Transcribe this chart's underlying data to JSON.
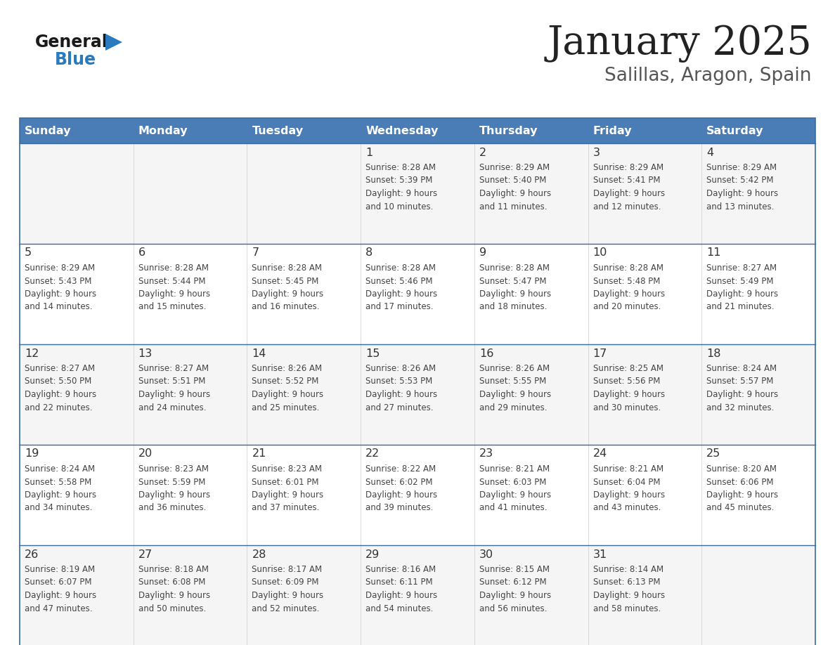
{
  "title": "January 2025",
  "subtitle": "Salillas, Aragon, Spain",
  "days_of_week": [
    "Sunday",
    "Monday",
    "Tuesday",
    "Wednesday",
    "Thursday",
    "Friday",
    "Saturday"
  ],
  "header_bg": "#4a7db5",
  "header_text": "#ffffff",
  "row_bg_light": "#f5f5f5",
  "row_bg_white": "#ffffff",
  "cell_text_color": "#444444",
  "day_num_color": "#333333",
  "border_color": "#3a6a9e",
  "title_color": "#222222",
  "subtitle_color": "#555555",
  "logo_general_color": "#1a1a1a",
  "logo_blue_color": "#2a7abf",
  "weeks": [
    [
      {
        "day": "",
        "info": ""
      },
      {
        "day": "",
        "info": ""
      },
      {
        "day": "",
        "info": ""
      },
      {
        "day": "1",
        "info": "Sunrise: 8:28 AM\nSunset: 5:39 PM\nDaylight: 9 hours\nand 10 minutes."
      },
      {
        "day": "2",
        "info": "Sunrise: 8:29 AM\nSunset: 5:40 PM\nDaylight: 9 hours\nand 11 minutes."
      },
      {
        "day": "3",
        "info": "Sunrise: 8:29 AM\nSunset: 5:41 PM\nDaylight: 9 hours\nand 12 minutes."
      },
      {
        "day": "4",
        "info": "Sunrise: 8:29 AM\nSunset: 5:42 PM\nDaylight: 9 hours\nand 13 minutes."
      }
    ],
    [
      {
        "day": "5",
        "info": "Sunrise: 8:29 AM\nSunset: 5:43 PM\nDaylight: 9 hours\nand 14 minutes."
      },
      {
        "day": "6",
        "info": "Sunrise: 8:28 AM\nSunset: 5:44 PM\nDaylight: 9 hours\nand 15 minutes."
      },
      {
        "day": "7",
        "info": "Sunrise: 8:28 AM\nSunset: 5:45 PM\nDaylight: 9 hours\nand 16 minutes."
      },
      {
        "day": "8",
        "info": "Sunrise: 8:28 AM\nSunset: 5:46 PM\nDaylight: 9 hours\nand 17 minutes."
      },
      {
        "day": "9",
        "info": "Sunrise: 8:28 AM\nSunset: 5:47 PM\nDaylight: 9 hours\nand 18 minutes."
      },
      {
        "day": "10",
        "info": "Sunrise: 8:28 AM\nSunset: 5:48 PM\nDaylight: 9 hours\nand 20 minutes."
      },
      {
        "day": "11",
        "info": "Sunrise: 8:27 AM\nSunset: 5:49 PM\nDaylight: 9 hours\nand 21 minutes."
      }
    ],
    [
      {
        "day": "12",
        "info": "Sunrise: 8:27 AM\nSunset: 5:50 PM\nDaylight: 9 hours\nand 22 minutes."
      },
      {
        "day": "13",
        "info": "Sunrise: 8:27 AM\nSunset: 5:51 PM\nDaylight: 9 hours\nand 24 minutes."
      },
      {
        "day": "14",
        "info": "Sunrise: 8:26 AM\nSunset: 5:52 PM\nDaylight: 9 hours\nand 25 minutes."
      },
      {
        "day": "15",
        "info": "Sunrise: 8:26 AM\nSunset: 5:53 PM\nDaylight: 9 hours\nand 27 minutes."
      },
      {
        "day": "16",
        "info": "Sunrise: 8:26 AM\nSunset: 5:55 PM\nDaylight: 9 hours\nand 29 minutes."
      },
      {
        "day": "17",
        "info": "Sunrise: 8:25 AM\nSunset: 5:56 PM\nDaylight: 9 hours\nand 30 minutes."
      },
      {
        "day": "18",
        "info": "Sunrise: 8:24 AM\nSunset: 5:57 PM\nDaylight: 9 hours\nand 32 minutes."
      }
    ],
    [
      {
        "day": "19",
        "info": "Sunrise: 8:24 AM\nSunset: 5:58 PM\nDaylight: 9 hours\nand 34 minutes."
      },
      {
        "day": "20",
        "info": "Sunrise: 8:23 AM\nSunset: 5:59 PM\nDaylight: 9 hours\nand 36 minutes."
      },
      {
        "day": "21",
        "info": "Sunrise: 8:23 AM\nSunset: 6:01 PM\nDaylight: 9 hours\nand 37 minutes."
      },
      {
        "day": "22",
        "info": "Sunrise: 8:22 AM\nSunset: 6:02 PM\nDaylight: 9 hours\nand 39 minutes."
      },
      {
        "day": "23",
        "info": "Sunrise: 8:21 AM\nSunset: 6:03 PM\nDaylight: 9 hours\nand 41 minutes."
      },
      {
        "day": "24",
        "info": "Sunrise: 8:21 AM\nSunset: 6:04 PM\nDaylight: 9 hours\nand 43 minutes."
      },
      {
        "day": "25",
        "info": "Sunrise: 8:20 AM\nSunset: 6:06 PM\nDaylight: 9 hours\nand 45 minutes."
      }
    ],
    [
      {
        "day": "26",
        "info": "Sunrise: 8:19 AM\nSunset: 6:07 PM\nDaylight: 9 hours\nand 47 minutes."
      },
      {
        "day": "27",
        "info": "Sunrise: 8:18 AM\nSunset: 6:08 PM\nDaylight: 9 hours\nand 50 minutes."
      },
      {
        "day": "28",
        "info": "Sunrise: 8:17 AM\nSunset: 6:09 PM\nDaylight: 9 hours\nand 52 minutes."
      },
      {
        "day": "29",
        "info": "Sunrise: 8:16 AM\nSunset: 6:11 PM\nDaylight: 9 hours\nand 54 minutes."
      },
      {
        "day": "30",
        "info": "Sunrise: 8:15 AM\nSunset: 6:12 PM\nDaylight: 9 hours\nand 56 minutes."
      },
      {
        "day": "31",
        "info": "Sunrise: 8:14 AM\nSunset: 6:13 PM\nDaylight: 9 hours\nand 58 minutes."
      },
      {
        "day": "",
        "info": ""
      }
    ]
  ]
}
